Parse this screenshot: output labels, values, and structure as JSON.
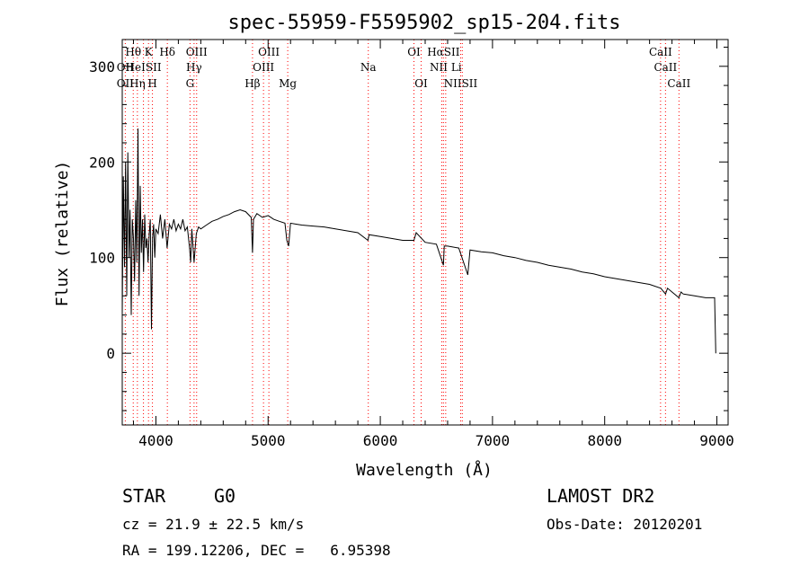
{
  "chart_data": {
    "type": "line",
    "title": "spec-55959-F5595902_sp15-204.fits",
    "xlabel": "Wavelength (Å)",
    "ylabel": "Flux (relative)",
    "xlim": [
      3700,
      9100
    ],
    "ylim": [
      -75,
      328
    ],
    "x_ticks": [
      4000,
      5000,
      6000,
      7000,
      8000,
      9000
    ],
    "y_ticks": [
      0,
      100,
      200,
      300
    ],
    "grid": false,
    "line_color": "#000000",
    "marker_color": "#ff0000",
    "series": [
      {
        "values": [
          [
            3700,
            40
          ],
          [
            3710,
            185
          ],
          [
            3720,
            90
          ],
          [
            3730,
            200
          ],
          [
            3740,
            60
          ],
          [
            3750,
            210
          ],
          [
            3760,
            100
          ],
          [
            3770,
            150
          ],
          [
            3780,
            40
          ],
          [
            3790,
            140
          ],
          [
            3800,
            120
          ],
          [
            3810,
            75
          ],
          [
            3820,
            160
          ],
          [
            3830,
            95
          ],
          [
            3840,
            235
          ],
          [
            3850,
            60
          ],
          [
            3860,
            175
          ],
          [
            3870,
            105
          ],
          [
            3880,
            140
          ],
          [
            3890,
            85
          ],
          [
            3900,
            145
          ],
          [
            3910,
            110
          ],
          [
            3920,
            120
          ],
          [
            3930,
            95
          ],
          [
            3940,
            125
          ],
          [
            3950,
            140
          ],
          [
            3960,
            25
          ],
          [
            3970,
            120
          ],
          [
            3980,
            135
          ],
          [
            3990,
            100
          ],
          [
            4000,
            130
          ],
          [
            4020,
            125
          ],
          [
            4040,
            145
          ],
          [
            4060,
            120
          ],
          [
            4080,
            140
          ],
          [
            4100,
            110
          ],
          [
            4120,
            135
          ],
          [
            4140,
            130
          ],
          [
            4160,
            140
          ],
          [
            4180,
            128
          ],
          [
            4200,
            135
          ],
          [
            4220,
            130
          ],
          [
            4240,
            140
          ],
          [
            4260,
            128
          ],
          [
            4280,
            132
          ],
          [
            4300,
            110
          ],
          [
            4310,
            95
          ],
          [
            4320,
            130
          ],
          [
            4340,
            95
          ],
          [
            4360,
            125
          ],
          [
            4380,
            132
          ],
          [
            4400,
            130
          ],
          [
            4450,
            134
          ],
          [
            4500,
            138
          ],
          [
            4550,
            140
          ],
          [
            4600,
            143
          ],
          [
            4650,
            145
          ],
          [
            4700,
            148
          ],
          [
            4750,
            150
          ],
          [
            4800,
            148
          ],
          [
            4850,
            142
          ],
          [
            4861,
            105
          ],
          [
            4870,
            140
          ],
          [
            4900,
            146
          ],
          [
            4950,
            142
          ],
          [
            5000,
            144
          ],
          [
            5050,
            140
          ],
          [
            5100,
            138
          ],
          [
            5150,
            136
          ],
          [
            5167,
            118
          ],
          [
            5183,
            112
          ],
          [
            5200,
            136
          ],
          [
            5250,
            135
          ],
          [
            5300,
            134
          ],
          [
            5400,
            133
          ],
          [
            5500,
            132
          ],
          [
            5600,
            130
          ],
          [
            5700,
            128
          ],
          [
            5800,
            126
          ],
          [
            5890,
            118
          ],
          [
            5900,
            124
          ],
          [
            6000,
            122
          ],
          [
            6100,
            120
          ],
          [
            6200,
            118
          ],
          [
            6300,
            118
          ],
          [
            6320,
            126
          ],
          [
            6400,
            116
          ],
          [
            6500,
            114
          ],
          [
            6563,
            92
          ],
          [
            6570,
            112
          ],
          [
            6600,
            112
          ],
          [
            6700,
            110
          ],
          [
            6780,
            82
          ],
          [
            6800,
            108
          ],
          [
            6900,
            106
          ],
          [
            7000,
            105
          ],
          [
            7100,
            102
          ],
          [
            7200,
            100
          ],
          [
            7300,
            97
          ],
          [
            7400,
            95
          ],
          [
            7500,
            92
          ],
          [
            7600,
            90
          ],
          [
            7700,
            88
          ],
          [
            7800,
            85
          ],
          [
            7900,
            83
          ],
          [
            8000,
            80
          ],
          [
            8100,
            78
          ],
          [
            8200,
            76
          ],
          [
            8300,
            74
          ],
          [
            8400,
            72
          ],
          [
            8500,
            68
          ],
          [
            8542,
            62
          ],
          [
            8560,
            68
          ],
          [
            8600,
            64
          ],
          [
            8662,
            58
          ],
          [
            8680,
            64
          ],
          [
            8700,
            62
          ],
          [
            8800,
            60
          ],
          [
            8900,
            58
          ],
          [
            8980,
            58
          ],
          [
            8990,
            0
          ]
        ]
      }
    ],
    "line_markers": [
      {
        "label": "Hθ",
        "x": 3798,
        "row": 1
      },
      {
        "label": "K",
        "x": 3934,
        "row": 1
      },
      {
        "label": "Hδ",
        "x": 4102,
        "row": 1
      },
      {
        "label": "OIII",
        "x": 4363,
        "row": 1
      },
      {
        "label": "OIII",
        "x": 5007,
        "row": 1
      },
      {
        "label": "OI",
        "x": 6300,
        "row": 1
      },
      {
        "label": "HαSII",
        "x": 6563,
        "row": 1
      },
      {
        "label": "CaII",
        "x": 8498,
        "row": 1
      },
      {
        "label": "OII",
        "x": 3727,
        "row": 2
      },
      {
        "label": "HeISII",
        "x": 3889,
        "row": 2
      },
      {
        "label": "Hγ",
        "x": 4340,
        "row": 2
      },
      {
        "label": "OIII",
        "x": 4959,
        "row": 2
      },
      {
        "label": "Na",
        "x": 5893,
        "row": 2
      },
      {
        "label": "NII Li",
        "x": 6583,
        "row": 2
      },
      {
        "label": "CaII",
        "x": 8542,
        "row": 2
      },
      {
        "label": "OII",
        "x": 3727,
        "row": 3
      },
      {
        "label": "Hη",
        "x": 3835,
        "row": 3
      },
      {
        "label": "H",
        "x": 3969,
        "row": 3
      },
      {
        "label": "G",
        "x": 4304,
        "row": 3
      },
      {
        "label": "Hβ",
        "x": 4861,
        "row": 3
      },
      {
        "label": "Mg",
        "x": 5175,
        "row": 3
      },
      {
        "label": "OI",
        "x": 6364,
        "row": 3
      },
      {
        "label": "NIISII",
        "x": 6716,
        "row": 3
      },
      {
        "label": "CaII",
        "x": 8662,
        "row": 3
      }
    ],
    "marker_lines_x": [
      3727,
      3798,
      3835,
      3889,
      3934,
      3969,
      4102,
      4304,
      4340,
      4363,
      4861,
      4959,
      5007,
      5175,
      5893,
      6300,
      6364,
      6548,
      6563,
      6583,
      6716,
      6731,
      8498,
      8542,
      8662
    ]
  },
  "info": {
    "class_label": "STAR",
    "subclass": "G0",
    "survey": "LAMOST DR2",
    "cz": "cz = 21.9 ± 22.5 km/s",
    "obs_date": "Obs-Date: 20120201",
    "coords": "RA = 199.12206, DEC =   6.95398"
  }
}
